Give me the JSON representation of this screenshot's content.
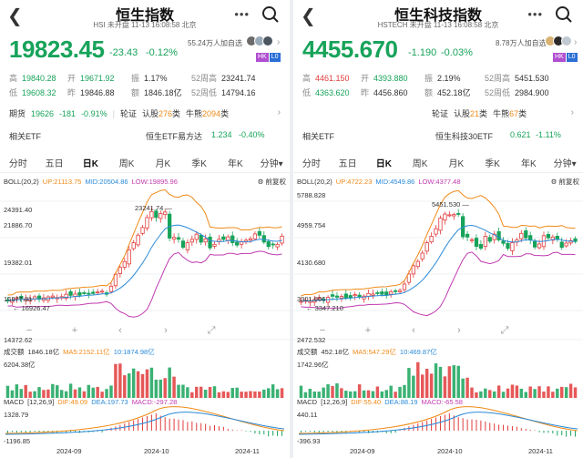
{
  "colors": {
    "up": "#e23b3b",
    "down": "#17a35a",
    "mid": "#2a8ad8",
    "upper": "#f08a18",
    "low": "#c03ab0"
  },
  "panels": [
    {
      "title": "恒生指数",
      "subtitle": "HSI  未开盘 11-13 16:08:58 北京",
      "price": "19823.45",
      "change": "-23.43",
      "change_pct": "-0.12%",
      "followers": "55.24万人加自选",
      "badge_hk": "HK",
      "badge_l0": "L0",
      "stats": [
        [
          {
            "k": "高",
            "v": "19840.28",
            "c": "grn"
          },
          {
            "k": "开",
            "v": "19671.92",
            "c": "grn"
          },
          {
            "k": "振",
            "v": "1.17%",
            "c": "dk"
          },
          {
            "k": "52周高",
            "v": "23241.74",
            "c": "dk"
          }
        ],
        [
          {
            "k": "低",
            "v": "19608.32",
            "c": "grn"
          },
          {
            "k": "昨",
            "v": "19846.88",
            "c": "dk"
          },
          {
            "k": "额",
            "v": "1846.18亿",
            "c": "dk"
          },
          {
            "k": "52周低",
            "v": "14794.16",
            "c": "dk"
          }
        ]
      ],
      "futures": {
        "label": "期货",
        "price": "19626",
        "chg": "-181",
        "pct": "-0.91%",
        "wheel": "轮证",
        "call_l": "认股",
        "call_n": "276",
        "call_u": "类",
        "bull_l": "牛熊",
        "bull_n": "2094",
        "bull_u": "类"
      },
      "etf": {
        "label": "相关ETF",
        "name": "恒生ETF易方达",
        "price": "1.234",
        "pct": "-0.40%"
      },
      "tabs": [
        "分时",
        "五日",
        "日K",
        "周K",
        "月K",
        "季K",
        "年K",
        "分钟▾"
      ],
      "boll": {
        "name": "BOLL(20,2)",
        "up": "UP:21113.75",
        "mid": "MID:20504.86",
        "low": "LOW:19895.96"
      },
      "restore": "前复权",
      "y_labels": [
        "24391.40",
        "21886.70",
        "19382.01",
        "16877.31",
        "14372.62"
      ],
      "hi_label": "23241.74",
      "lo_label": "16926.47",
      "vol": {
        "name": "成交额",
        "v": "1846.18亿",
        "ma5": "MA5:2152.11亿",
        "ma10": "10:1874.98亿",
        "top": "6204.38亿"
      },
      "macd": {
        "name": "MACD",
        "params": "[12,26,9]",
        "dif": "DIF:49.09",
        "dea": "DEA:197.73",
        "macd": "MACD:-297.28",
        "top": "1328.79",
        "bottom": "-1196.85"
      },
      "x_labels": [
        "2024-09",
        "2024-10",
        "2024-11"
      ]
    },
    {
      "title": "恒生科技指数",
      "subtitle": "HSTECH  未开盘 11-13 16:08:58 北京",
      "price": "4455.670",
      "change": "-1.190",
      "change_pct": "-0.03%",
      "followers": "8.78万人加自选",
      "badge_hk": "HK",
      "badge_l0": "L0",
      "stats": [
        [
          {
            "k": "高",
            "v": "4461.150",
            "c": "red"
          },
          {
            "k": "开",
            "v": "4393.880",
            "c": "grn"
          },
          {
            "k": "振",
            "v": "2.19%",
            "c": "dk"
          },
          {
            "k": "52周高",
            "v": "5451.530",
            "c": "dk"
          }
        ],
        [
          {
            "k": "低",
            "v": "4363.620",
            "c": "grn"
          },
          {
            "k": "昨",
            "v": "4456.860",
            "c": "dk"
          },
          {
            "k": "额",
            "v": "452.18亿",
            "c": "dk"
          },
          {
            "k": "52周低",
            "v": "2984.900",
            "c": "dk"
          }
        ]
      ],
      "futures": {
        "label": "",
        "price": "",
        "chg": "",
        "pct": "",
        "wheel": "轮证",
        "call_l": "认股",
        "call_n": "21",
        "call_u": "类",
        "bull_l": "牛熊",
        "bull_n": "67",
        "bull_u": "类"
      },
      "etf": {
        "label": "相关ETF",
        "name": "恒生科技30ETF",
        "price": "0.621",
        "pct": "-1.11%"
      },
      "tabs": [
        "分时",
        "五日",
        "日K",
        "周K",
        "月K",
        "季K",
        "年K",
        "分钟▾"
      ],
      "boll": {
        "name": "BOLL(20,2)",
        "up": "UP:4722.23",
        "mid": "MID:4549.86",
        "low": "LOW:4377.48"
      },
      "restore": "前复权",
      "y_labels": [
        "5788.828",
        "4959.754",
        "4130.680",
        "3301.606",
        "2472.532"
      ],
      "hi_label": "5451.530",
      "lo_label": "3347.210",
      "vol": {
        "name": "成交额",
        "v": "452.18亿",
        "ma5": "MA5:547.29亿",
        "ma10": "10:469.87亿",
        "top": "1742.96亿"
      },
      "macd": {
        "name": "MACD",
        "params": "[12,26,9]",
        "dif": "DIF:55.40",
        "dea": "DEA:88.19",
        "macd": "MACD:-65.58",
        "top": "440.11",
        "bottom": "-396.93"
      },
      "x_labels": [
        "2024-09",
        "2024-10",
        "2024-11"
      ]
    }
  ]
}
